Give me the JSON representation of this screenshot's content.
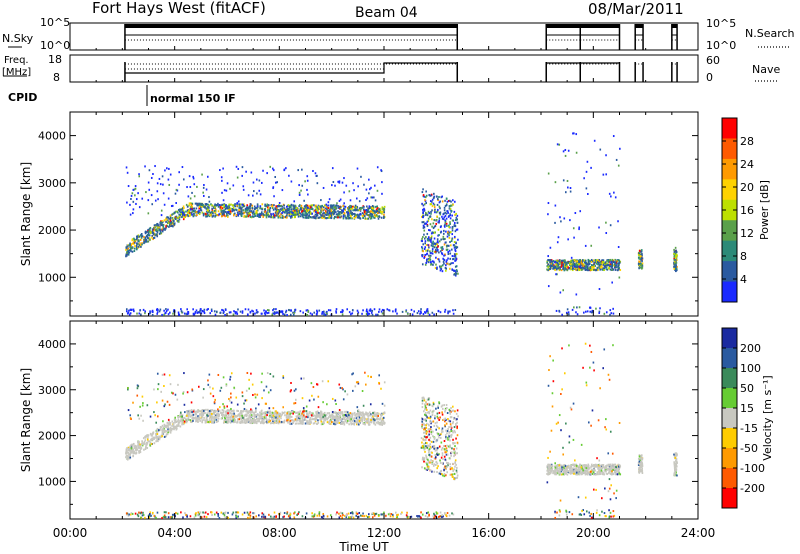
{
  "header": {
    "station": "Fort Hays West (fitACF)",
    "beam": "Beam 04",
    "date": "08/Mar/2011"
  },
  "panels": {
    "nsky": {
      "label": "N.Sky",
      "right_label": "N.Search",
      "left_ticks": [
        "10^5",
        "10^0"
      ],
      "right_ticks": [
        "10^5",
        "10^0"
      ]
    },
    "freq": {
      "label_line1": "Freq.",
      "label_line2": "[MHz]",
      "right_label": "Nave",
      "left_ticks": [
        "18",
        "8"
      ],
      "right_ticks": [
        "60",
        "0"
      ]
    },
    "cpid": {
      "label": "CPID",
      "mode": "normal 150 IF"
    }
  },
  "chart_data": [
    {
      "type": "heatmap",
      "name": "power",
      "ylabel": "Slant Range [km]",
      "xlabel": "",
      "xlim": [
        "00:00",
        "24:00"
      ],
      "ylim": [
        180,
        4500
      ],
      "yticks": [
        1000,
        2000,
        3000,
        4000
      ],
      "x_tick_labels": [
        "00:00",
        "04:00",
        "08:00",
        "12:00",
        "16:00",
        "20:00",
        "24:00"
      ],
      "colorbar": {
        "label": "Power [dB]",
        "ticks": [
          28,
          24,
          20,
          16,
          12,
          8,
          4
        ],
        "colors": [
          "#ff0000",
          "#ff5a00",
          "#ff9a00",
          "#ffd200",
          "#bde000",
          "#5aa04a",
          "#2c8a78",
          "#2a5aa0",
          "#1a2aff"
        ]
      },
      "series": [
        {
          "time_h": [
            2.1,
            4.0,
            6.0,
            8.0,
            10.0,
            12.0
          ],
          "range_km_center": [
            1650,
            2450,
            2380,
            2400,
            2350,
            2380
          ]
        },
        {
          "time_h": [
            13.5,
            14.5,
            14.8
          ],
          "range_km_center": [
            1800,
            1500,
            1300
          ]
        },
        {
          "time_h": [
            18.2,
            19.5,
            21.0
          ],
          "range_km_center": [
            1300,
            1250,
            1280
          ]
        }
      ]
    },
    {
      "type": "heatmap",
      "name": "velocity",
      "ylabel": "Slant Range [km]",
      "xlabel": "Time UT",
      "xlim": [
        "00:00",
        "24:00"
      ],
      "ylim": [
        180,
        4500
      ],
      "yticks": [
        1000,
        2000,
        3000,
        4000
      ],
      "x_tick_labels": [
        "00:00",
        "04:00",
        "08:00",
        "12:00",
        "16:00",
        "20:00",
        "24:00"
      ],
      "colorbar": {
        "label": "Velocity [m s⁻¹]",
        "ticks": [
          200,
          100,
          50,
          15,
          -15,
          -50,
          -100,
          -200
        ],
        "colors": [
          "#1a2aa0",
          "#2a5aa0",
          "#3a8a5a",
          "#66cc33",
          "#c8c8c0",
          "#ffcc00",
          "#ff9a00",
          "#ff5a00",
          "#ff0000"
        ]
      }
    }
  ]
}
